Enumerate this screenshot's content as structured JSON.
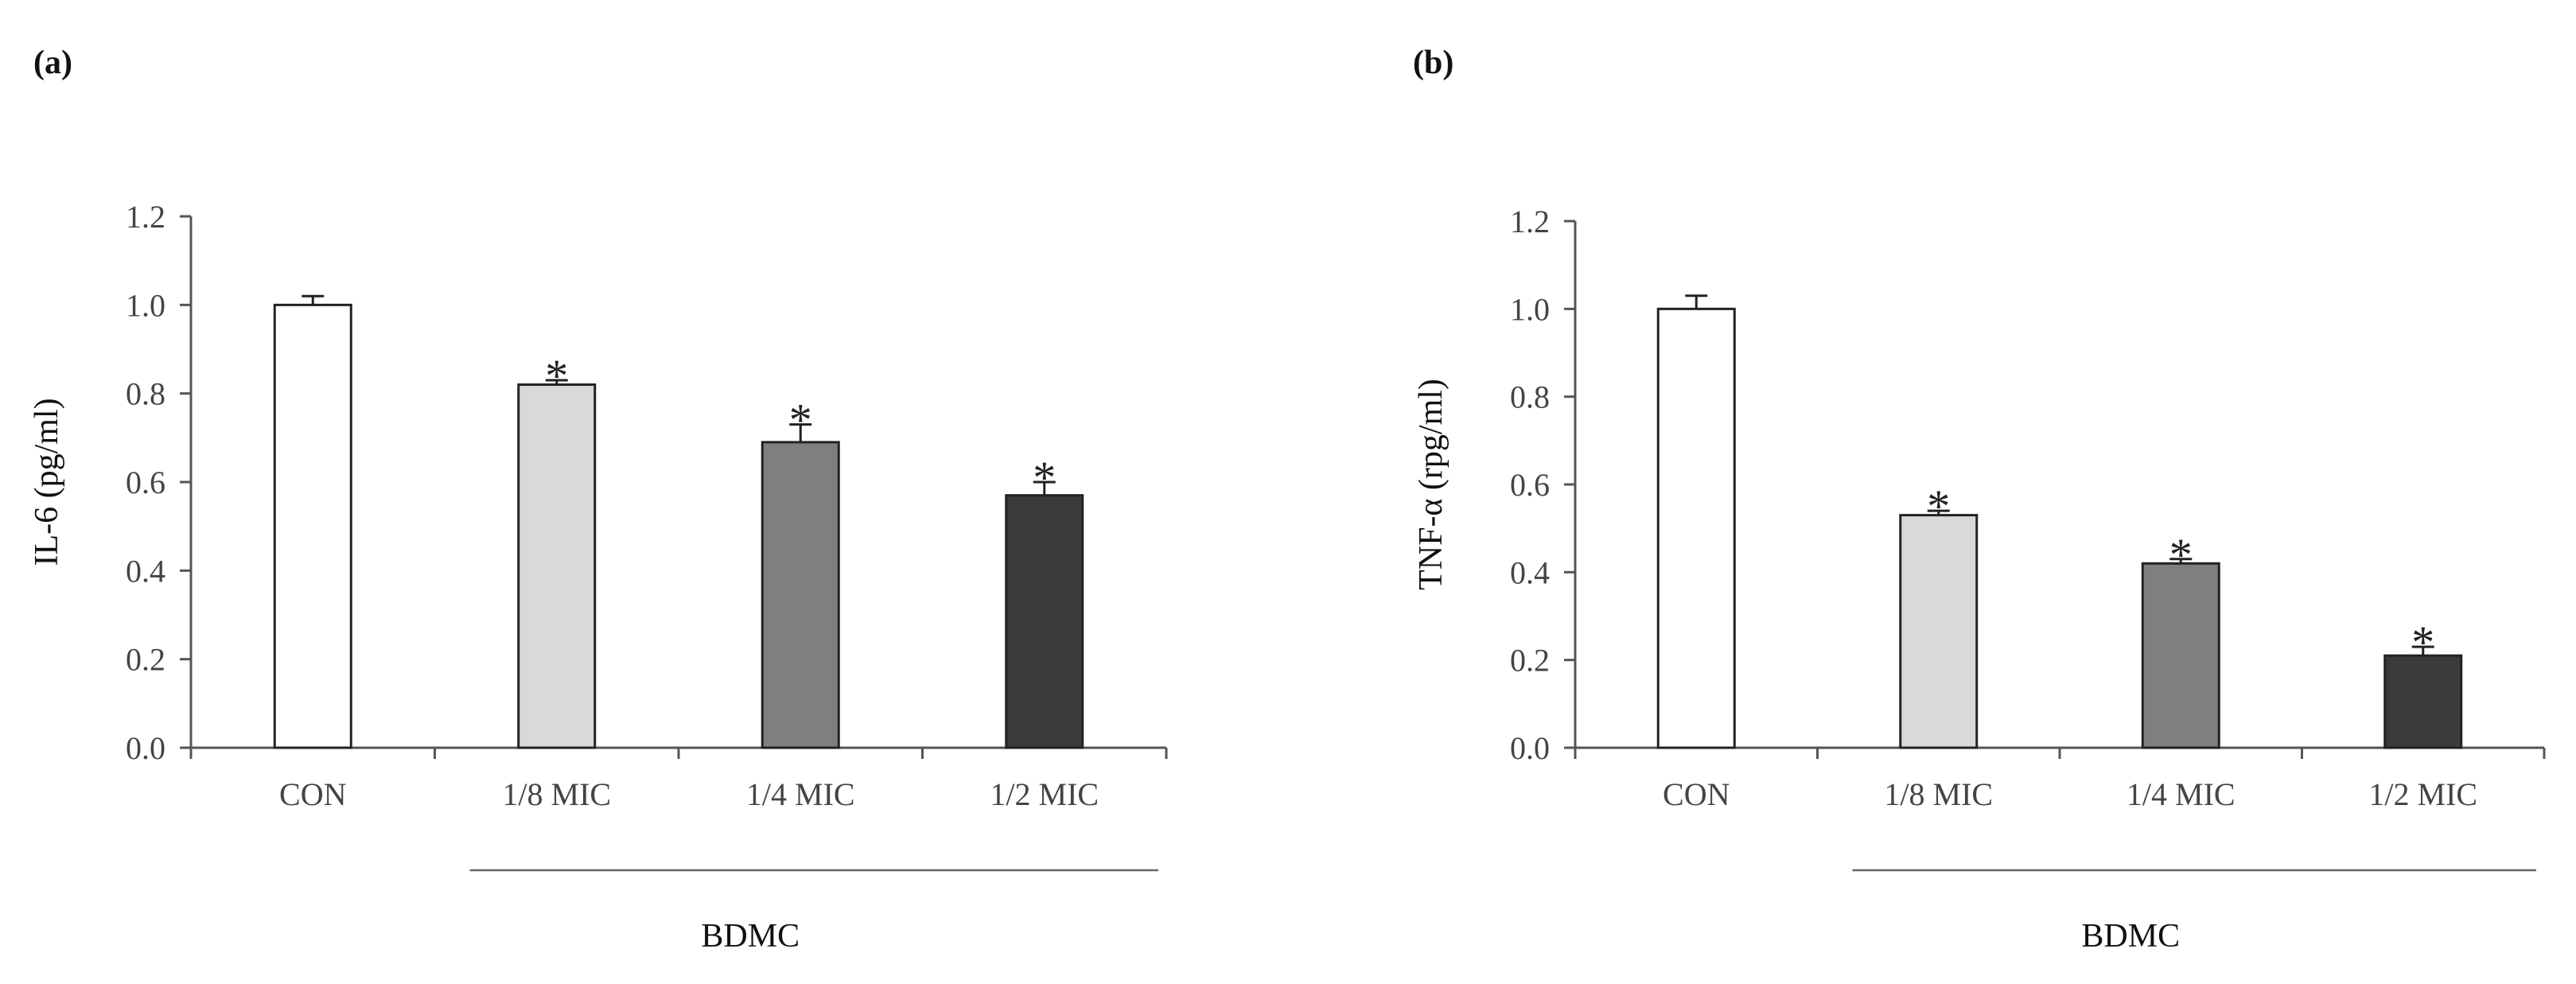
{
  "figure": {
    "panels": [
      {
        "panel_label": "(a)",
        "group_label": "BDMC",
        "colors": [
          "#ffffff",
          "#d9d9d9",
          "#7f7f7f",
          "#3b3b3b"
        ]
      },
      {
        "panel_label": "(b)",
        "group_label": "BDMC",
        "colors": [
          "#ffffff",
          "#d9d9d9",
          "#7f7f7f",
          "#3b3b3b"
        ]
      }
    ]
  },
  "chart_data": [
    {
      "type": "bar",
      "title": "",
      "xlabel": "",
      "ylabel": "IL-6 (pg/ml)",
      "categories": [
        "CON",
        "1/8 MIC",
        "1/4 MIC",
        "1/2 MIC"
      ],
      "values": [
        1.0,
        0.82,
        0.69,
        0.57
      ],
      "errors": [
        0.02,
        0.01,
        0.04,
        0.03
      ],
      "significance": [
        "",
        "*",
        "*",
        "*"
      ],
      "ylim": [
        0,
        1.2
      ],
      "yticks": [
        "0.0",
        "0.2",
        "0.4",
        "0.6",
        "0.8",
        "1.0",
        "1.2"
      ],
      "grid": false
    },
    {
      "type": "bar",
      "title": "",
      "xlabel": "",
      "ylabel": "TNF-α (rpg/ml)",
      "categories": [
        "CON",
        "1/8 MIC",
        "1/4 MIC",
        "1/2 MIC"
      ],
      "values": [
        1.0,
        0.53,
        0.42,
        0.21
      ],
      "errors": [
        0.03,
        0.01,
        0.01,
        0.02
      ],
      "significance": [
        "",
        "*",
        "*",
        "*"
      ],
      "ylim": [
        0,
        1.2
      ],
      "yticks": [
        "0.0",
        "0.2",
        "0.4",
        "0.6",
        "0.8",
        "1.0",
        "1.2"
      ],
      "grid": false
    }
  ]
}
